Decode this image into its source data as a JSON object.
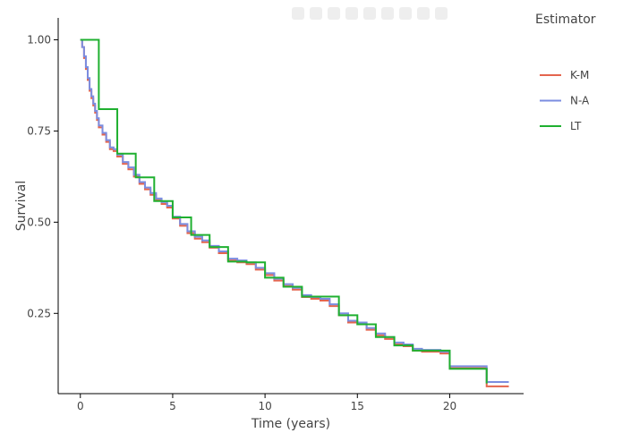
{
  "chart_data": {
    "type": "line",
    "title": "",
    "xlabel": "Time (years)",
    "ylabel": "Survival",
    "xlim": [
      -1.2,
      24
    ],
    "ylim": [
      0.03,
      1.06
    ],
    "xticks": [
      0,
      5,
      10,
      15,
      20
    ],
    "yticks": [
      0.25,
      0.5,
      0.75,
      1.0
    ],
    "ytick_labels": [
      "0.25",
      "0.50",
      "0.75",
      "1.00"
    ],
    "grid": false,
    "legend": {
      "title": "Estimator",
      "position": "right"
    },
    "series": [
      {
        "name": "K-M",
        "color": "#e4654e",
        "step": true,
        "x": [
          0,
          0.1,
          0.2,
          0.3,
          0.4,
          0.5,
          0.6,
          0.7,
          0.8,
          0.9,
          1.0,
          1.2,
          1.4,
          1.6,
          1.8,
          2.0,
          2.3,
          2.6,
          2.9,
          3.2,
          3.5,
          3.8,
          4.1,
          4.4,
          4.7,
          5.0,
          5.4,
          5.8,
          6.2,
          6.6,
          7.0,
          7.5,
          8.0,
          8.5,
          9.0,
          9.5,
          10.0,
          10.5,
          11.0,
          11.5,
          12.0,
          12.5,
          13.0,
          13.5,
          14.0,
          14.5,
          15.0,
          15.5,
          16.0,
          16.5,
          17.0,
          17.5,
          18.0,
          18.5,
          19.0,
          19.5,
          20.0,
          20.5,
          21.0,
          21.5,
          22.0,
          23.2
        ],
        "y": [
          1.0,
          0.98,
          0.95,
          0.92,
          0.89,
          0.86,
          0.84,
          0.82,
          0.8,
          0.78,
          0.76,
          0.74,
          0.72,
          0.7,
          0.695,
          0.68,
          0.66,
          0.645,
          0.625,
          0.605,
          0.59,
          0.575,
          0.56,
          0.55,
          0.54,
          0.51,
          0.49,
          0.47,
          0.455,
          0.445,
          0.43,
          0.415,
          0.395,
          0.39,
          0.385,
          0.37,
          0.355,
          0.34,
          0.325,
          0.315,
          0.295,
          0.29,
          0.285,
          0.27,
          0.245,
          0.225,
          0.22,
          0.205,
          0.19,
          0.18,
          0.165,
          0.16,
          0.148,
          0.145,
          0.145,
          0.14,
          0.1,
          0.1,
          0.1,
          0.1,
          0.05,
          0.05
        ]
      },
      {
        "name": "N-A",
        "color": "#7b8de0",
        "step": true,
        "x": [
          0,
          0.1,
          0.2,
          0.3,
          0.4,
          0.5,
          0.6,
          0.7,
          0.8,
          0.9,
          1.0,
          1.2,
          1.4,
          1.6,
          1.8,
          2.0,
          2.3,
          2.6,
          2.9,
          3.2,
          3.5,
          3.8,
          4.1,
          4.4,
          4.7,
          5.0,
          5.4,
          5.8,
          6.2,
          6.6,
          7.0,
          7.5,
          8.0,
          8.5,
          9.0,
          9.5,
          10.0,
          10.5,
          11.0,
          11.5,
          12.0,
          12.5,
          13.0,
          13.5,
          14.0,
          14.5,
          15.0,
          15.5,
          16.0,
          16.5,
          17.0,
          17.5,
          18.0,
          18.5,
          19.0,
          19.5,
          20.0,
          20.5,
          21.0,
          21.5,
          22.0,
          23.2
        ],
        "y": [
          1.0,
          0.98,
          0.955,
          0.925,
          0.895,
          0.865,
          0.845,
          0.825,
          0.805,
          0.785,
          0.765,
          0.745,
          0.725,
          0.705,
          0.7,
          0.685,
          0.665,
          0.65,
          0.63,
          0.61,
          0.595,
          0.58,
          0.565,
          0.555,
          0.545,
          0.515,
          0.495,
          0.475,
          0.46,
          0.45,
          0.435,
          0.42,
          0.4,
          0.395,
          0.39,
          0.375,
          0.36,
          0.345,
          0.33,
          0.32,
          0.3,
          0.295,
          0.29,
          0.275,
          0.25,
          0.23,
          0.225,
          0.21,
          0.195,
          0.185,
          0.17,
          0.165,
          0.153,
          0.15,
          0.15,
          0.145,
          0.105,
          0.105,
          0.105,
          0.105,
          0.062,
          0.062
        ]
      },
      {
        "name": "LT",
        "color": "#1fb030",
        "step": true,
        "x": [
          0,
          1,
          2,
          3,
          4,
          5,
          6,
          7,
          8,
          9,
          10,
          11,
          12,
          13,
          14,
          15,
          16,
          17,
          18,
          19,
          20,
          21,
          22,
          22
        ],
        "y": [
          1.0,
          0.81,
          0.688,
          0.623,
          0.558,
          0.513,
          0.465,
          0.432,
          0.392,
          0.39,
          0.348,
          0.323,
          0.296,
          0.296,
          0.245,
          0.22,
          0.185,
          0.162,
          0.148,
          0.148,
          0.098,
          0.098,
          0.058,
          0.058
        ]
      }
    ]
  }
}
